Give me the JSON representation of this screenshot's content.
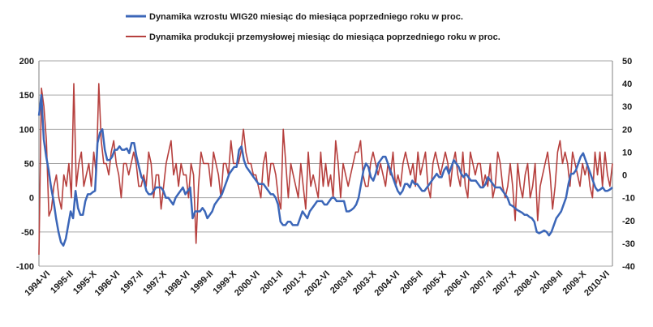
{
  "chart_data": {
    "type": "line",
    "title": "",
    "xlabel": "",
    "ylabel_left": "",
    "ylabel_right": "",
    "grid": true,
    "legend_position": "top",
    "colors": {
      "wig20": "#3b66b8",
      "industrial": "#b6403e",
      "grid": "#a6a6a6",
      "axis": "#808080"
    },
    "left_axis": {
      "ylim": [
        -100,
        200
      ],
      "ticks": [
        -100,
        -50,
        0,
        50,
        100,
        150,
        200
      ]
    },
    "right_axis": {
      "ylim": [
        -40,
        50
      ],
      "ticks": [
        -40,
        -30,
        -20,
        -10,
        0,
        10,
        20,
        30,
        40,
        50
      ]
    },
    "x_labels": [
      "1994-VI",
      "1995-II",
      "1995-X",
      "1996-VI",
      "1997-II",
      "1997-X",
      "1998-VI",
      "1999-II",
      "1999-X",
      "2000-VI",
      "2001-II",
      "2001-X",
      "2002-VI",
      "2003-II",
      "2003-X",
      "2004-VI",
      "2005-II",
      "2005-X",
      "2006-VI",
      "2007-II",
      "2007-X",
      "2008-VI",
      "2009-II",
      "2009-X",
      "2010-VI"
    ],
    "series": [
      {
        "name": "Dynamika wzrostu WIG20 miesiąc do miesiąca poprzedniego roku w proc.",
        "axis": "left",
        "values": [
          120,
          150,
          85,
          60,
          40,
          15,
          -5,
          -30,
          -50,
          -65,
          -70,
          -60,
          -40,
          -20,
          -30,
          10,
          -15,
          -25,
          -25,
          -5,
          5,
          5,
          8,
          10,
          80,
          95,
          100,
          70,
          55,
          55,
          60,
          70,
          70,
          75,
          70,
          70,
          72,
          65,
          80,
          80,
          60,
          45,
          30,
          25,
          10,
          5,
          5,
          10,
          15,
          15,
          15,
          10,
          0,
          0,
          -5,
          -10,
          0,
          5,
          10,
          15,
          5,
          10,
          15,
          -30,
          -20,
          -20,
          -20,
          -15,
          -20,
          -30,
          -25,
          -20,
          -10,
          -5,
          0,
          5,
          15,
          25,
          35,
          40,
          45,
          45,
          70,
          75,
          55,
          45,
          40,
          35,
          30,
          25,
          20,
          20,
          20,
          15,
          10,
          5,
          5,
          0,
          -10,
          -35,
          -40,
          -40,
          -35,
          -35,
          -40,
          -40,
          -40,
          -30,
          -20,
          -25,
          -30,
          -20,
          -15,
          -10,
          -5,
          -5,
          -5,
          -10,
          -10,
          -5,
          0,
          0,
          -5,
          -5,
          -5,
          -5,
          -20,
          -20,
          -18,
          -15,
          -10,
          0,
          20,
          40,
          50,
          45,
          30,
          25,
          35,
          50,
          55,
          60,
          60,
          50,
          40,
          30,
          20,
          10,
          5,
          10,
          20,
          20,
          15,
          25,
          20,
          20,
          15,
          10,
          10,
          15,
          20,
          25,
          30,
          35,
          30,
          30,
          40,
          45,
          35,
          45,
          55,
          50,
          45,
          35,
          30,
          35,
          30,
          25,
          25,
          25,
          20,
          15,
          15,
          20,
          30,
          25,
          20,
          15,
          15,
          15,
          10,
          5,
          0,
          -10,
          -12,
          -15,
          -18,
          -20,
          -22,
          -25,
          -25,
          -28,
          -30,
          -35,
          -50,
          -52,
          -50,
          -48,
          -50,
          -55,
          -50,
          -40,
          -30,
          -25,
          -20,
          -10,
          0,
          20,
          35,
          35,
          40,
          50,
          60,
          65,
          55,
          45,
          35,
          25,
          15,
          10,
          12,
          15,
          10,
          10,
          12,
          15
        ]
      },
      {
        "name": "Dynamika produkcji przemysłowej miesiąc do miesiąca poprzedniego roku w proc.",
        "axis": "right",
        "values": [
          -35,
          38,
          30,
          15,
          -18,
          -15,
          -5,
          0,
          -10,
          -15,
          0,
          -5,
          5,
          -10,
          40,
          -5,
          5,
          10,
          -5,
          0,
          5,
          -5,
          10,
          0,
          40,
          15,
          5,
          5,
          0,
          10,
          15,
          5,
          0,
          -10,
          5,
          5,
          0,
          5,
          10,
          5,
          -5,
          -5,
          0,
          -5,
          10,
          5,
          -10,
          0,
          0,
          -15,
          -5,
          5,
          10,
          15,
          0,
          5,
          -5,
          5,
          0,
          0,
          -10,
          5,
          0,
          -30,
          -5,
          10,
          5,
          5,
          5,
          -5,
          10,
          5,
          0,
          -10,
          5,
          5,
          0,
          15,
          5,
          5,
          5,
          10,
          20,
          10,
          5,
          5,
          0,
          0,
          -5,
          -10,
          5,
          10,
          -5,
          5,
          5,
          0,
          -10,
          -15,
          20,
          5,
          -10,
          5,
          0,
          -5,
          -10,
          5,
          -5,
          -15,
          10,
          -5,
          0,
          -5,
          -10,
          10,
          -5,
          5,
          -5,
          0,
          -10,
          15,
          5,
          -10,
          5,
          0,
          -5,
          0,
          5,
          10,
          10,
          15,
          0,
          -5,
          -5,
          5,
          10,
          5,
          0,
          5,
          0,
          -5,
          5,
          0,
          10,
          -5,
          0,
          -5,
          5,
          10,
          5,
          0,
          5,
          -5,
          10,
          0,
          5,
          10,
          -5,
          -10,
          5,
          10,
          5,
          0,
          5,
          10,
          5,
          -5,
          5,
          10,
          0,
          -5,
          10,
          -5,
          -10,
          10,
          5,
          0,
          5,
          5,
          -5,
          0,
          -5,
          5,
          -10,
          -5,
          10,
          5,
          -5,
          -10,
          -5,
          5,
          -5,
          -20,
          5,
          -5,
          -10,
          0,
          5,
          -10,
          -5,
          5,
          -20,
          -5,
          0,
          5,
          10,
          0,
          -15,
          -5,
          10,
          15,
          5,
          10,
          5,
          -5,
          10,
          5,
          0,
          -5,
          5,
          0,
          5,
          -5,
          -10,
          10,
          0,
          10,
          -5,
          10,
          0,
          -5,
          5
        ]
      }
    ]
  }
}
